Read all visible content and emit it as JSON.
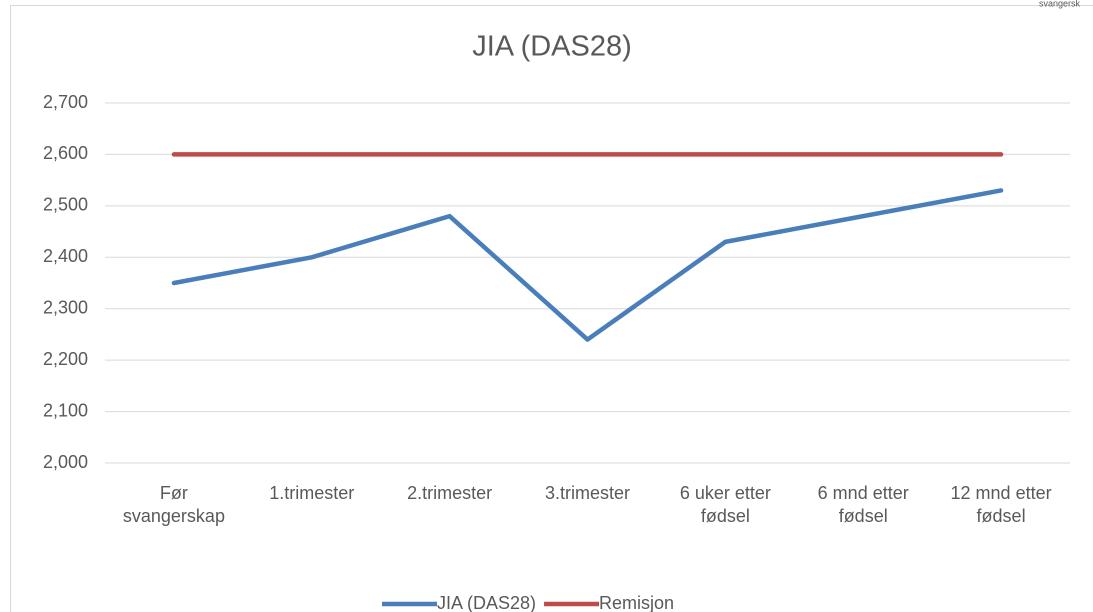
{
  "corner_text": "svangersk",
  "chart_data": {
    "type": "line",
    "title": "JIA (DAS28)",
    "categories": [
      "Før svangerskap",
      "1.trimester",
      "2.trimester",
      "3.trimester",
      "6 uker etter fødsel",
      "6 mnd etter fødsel",
      "12 mnd etter fødsel"
    ],
    "series": [
      {
        "name": "JIA (DAS28)",
        "color": "#4a7ebb",
        "values": [
          2.35,
          2.4,
          2.48,
          2.24,
          2.43,
          2.48,
          2.53
        ]
      },
      {
        "name": "Remisjon",
        "color": "#be4b48",
        "values": [
          2.6,
          2.6,
          2.6,
          2.6,
          2.6,
          2.6,
          2.6
        ]
      }
    ],
    "ylim": [
      2.0,
      2.7
    ],
    "yticks": [
      {
        "value": 2.0,
        "label": "2,000"
      },
      {
        "value": 2.1,
        "label": "2,100"
      },
      {
        "value": 2.2,
        "label": "2,200"
      },
      {
        "value": 2.3,
        "label": "2,300"
      },
      {
        "value": 2.4,
        "label": "2,400"
      },
      {
        "value": 2.5,
        "label": "2,500"
      },
      {
        "value": 2.6,
        "label": "2,600"
      },
      {
        "value": 2.7,
        "label": "2,700"
      }
    ],
    "grid": true,
    "legend": "bottom"
  }
}
